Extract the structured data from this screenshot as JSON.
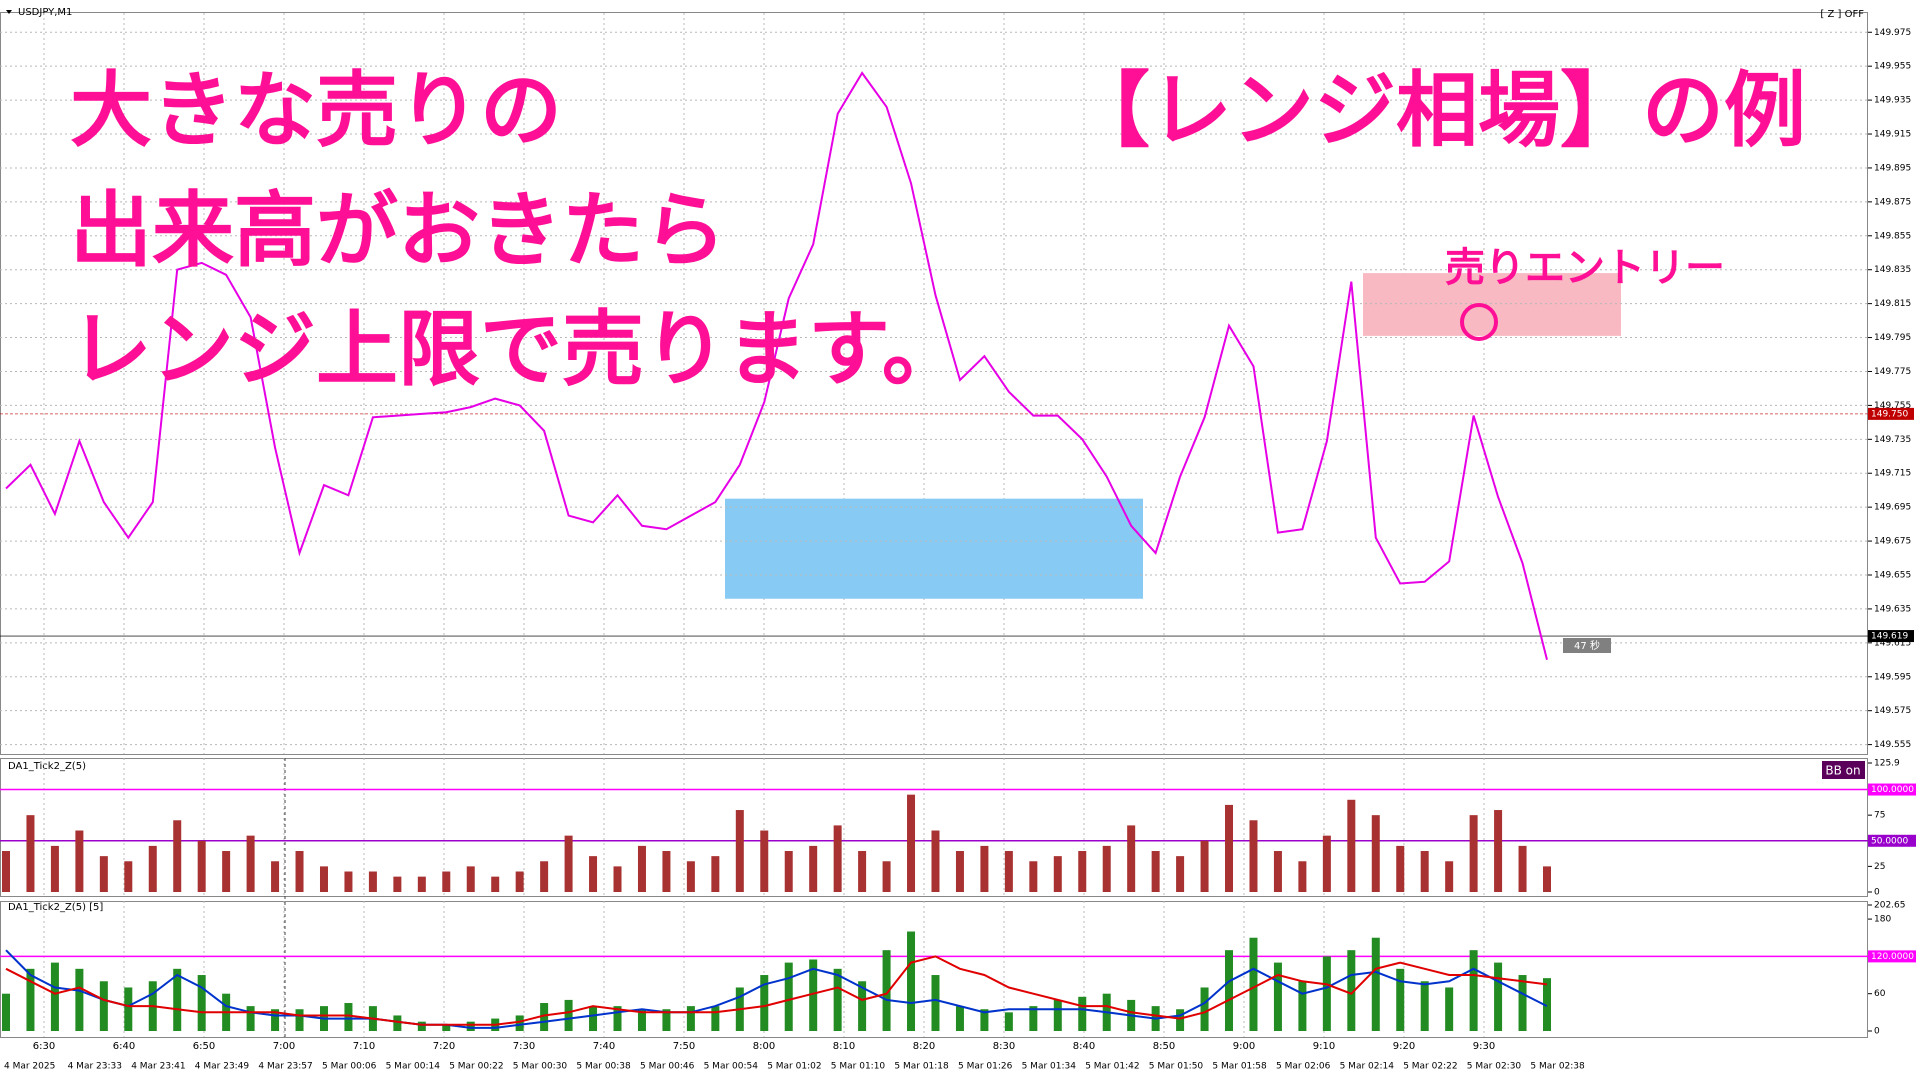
{
  "chart_data": [
    {
      "type": "line",
      "title": "USDJPY,M1",
      "status": "[ Z ] OFF",
      "ylim": [
        149.553,
        149.984
      ],
      "yticks": [
        149.555,
        149.575,
        149.595,
        149.615,
        149.635,
        149.655,
        149.675,
        149.695,
        149.715,
        149.735,
        149.755,
        149.775,
        149.795,
        149.815,
        149.835,
        149.855,
        149.875,
        149.895,
        149.915,
        149.935,
        149.955,
        149.975
      ],
      "grid": true,
      "series": [
        {
          "color": "#e600e6",
          "values": [
            149.706,
            149.72,
            149.691,
            149.734,
            149.698,
            149.677,
            149.698,
            149.835,
            149.839,
            149.832,
            149.807,
            149.73,
            149.668,
            149.708,
            149.702,
            149.748,
            149.749,
            149.75,
            149.751,
            149.754,
            149.759,
            149.755,
            149.74,
            149.69,
            149.686,
            149.702,
            149.684,
            149.682,
            149.69,
            149.698,
            149.72,
            149.757,
            149.818,
            149.85,
            149.927,
            149.951,
            149.931,
            149.886,
            149.82,
            149.77,
            149.784,
            149.763,
            149.749,
            149.749,
            149.735,
            149.713,
            149.684,
            149.668,
            149.713,
            149.748,
            149.802,
            149.778,
            149.68,
            149.682,
            149.734,
            149.828,
            149.677,
            149.65,
            149.651,
            149.663,
            149.749,
            149.701,
            149.662,
            149.605
          ]
        }
      ],
      "hlines": [
        {
          "value": 149.75,
          "label": "149.750",
          "color": "#c00000"
        },
        {
          "value": 149.619,
          "label": "149.619",
          "color": "#000000"
        }
      ],
      "zones": [
        {
          "ymin": 149.641,
          "ymax": 149.7,
          "color": "#87cbf5"
        },
        {
          "ymin": 149.796,
          "ymax": 149.833,
          "color": "#f8b9c2"
        }
      ],
      "countdown": "47 秒",
      "annotations": [
        "大きな売りの",
        "出来高がおきたら",
        "レンジ上限で売ります。",
        "【レンジ相場】の例",
        "売りエントリー"
      ]
    },
    {
      "type": "bar",
      "title": "DA1_Tick2_Z(5)",
      "badge": "BB on",
      "color": "#a83232",
      "ylim": [
        0,
        125.9
      ],
      "yticks": [
        125.9,
        75,
        25,
        0
      ],
      "levels": [
        {
          "value": 100,
          "label": "100.0000",
          "color": "#ff00ff"
        },
        {
          "value": 50,
          "label": "50.0000",
          "color": "#9900cc"
        }
      ],
      "values": [
        40,
        75,
        45,
        60,
        35,
        30,
        45,
        70,
        50,
        40,
        55,
        30,
        40,
        25,
        20,
        20,
        15,
        15,
        20,
        25,
        15,
        20,
        30,
        55,
        35,
        25,
        45,
        40,
        30,
        35,
        80,
        60,
        40,
        45,
        65,
        40,
        30,
        95,
        60,
        40,
        45,
        40,
        30,
        35,
        40,
        45,
        65,
        40,
        35,
        50,
        85,
        70,
        40,
        30,
        55,
        90,
        75,
        45,
        40,
        30,
        75,
        80,
        45,
        25
      ]
    },
    {
      "type": "combo",
      "title": "DA1_Tick2_Z(5) [5]",
      "color": "#228b22",
      "ylim": [
        0,
        202.65
      ],
      "yticks": [
        202.65,
        180,
        60,
        0
      ],
      "levels": [
        {
          "value": 120,
          "label": "120.0000",
          "color": "#ff00ff"
        }
      ],
      "values": [
        60,
        100,
        110,
        100,
        80,
        70,
        80,
        100,
        90,
        60,
        40,
        35,
        35,
        40,
        45,
        40,
        25,
        15,
        10,
        15,
        20,
        25,
        45,
        50,
        40,
        40,
        35,
        35,
        40,
        40,
        70,
        90,
        110,
        115,
        100,
        80,
        130,
        160,
        90,
        40,
        35,
        30,
        40,
        50,
        55,
        60,
        50,
        40,
        35,
        70,
        130,
        150,
        110,
        80,
        120,
        130,
        150,
        100,
        80,
        70,
        130,
        110,
        90,
        85
      ],
      "lines": [
        {
          "color": "#0033cc",
          "values": [
            130,
            90,
            70,
            65,
            50,
            40,
            60,
            90,
            70,
            40,
            30,
            25,
            25,
            20,
            20,
            20,
            15,
            10,
            10,
            5,
            5,
            10,
            15,
            20,
            25,
            30,
            35,
            30,
            30,
            40,
            55,
            75,
            85,
            100,
            90,
            70,
            50,
            45,
            50,
            40,
            30,
            35,
            35,
            35,
            35,
            30,
            25,
            20,
            25,
            45,
            80,
            100,
            80,
            60,
            70,
            90,
            95,
            80,
            75,
            80,
            100,
            80,
            60,
            40
          ]
        },
        {
          "color": "#e00000",
          "values": [
            100,
            80,
            60,
            70,
            50,
            40,
            40,
            35,
            30,
            30,
            30,
            30,
            25,
            25,
            25,
            20,
            15,
            10,
            10,
            10,
            10,
            15,
            25,
            30,
            40,
            35,
            30,
            30,
            30,
            30,
            35,
            40,
            50,
            60,
            70,
            50,
            60,
            110,
            120,
            100,
            90,
            70,
            60,
            50,
            40,
            40,
            30,
            25,
            20,
            30,
            50,
            70,
            90,
            80,
            75,
            60,
            100,
            110,
            100,
            90,
            90,
            85,
            80,
            75
          ]
        }
      ]
    }
  ],
  "time_axis": {
    "times": [
      "6:30",
      "6:40",
      "6:50",
      "7:00",
      "7:10",
      "7:20",
      "7:30",
      "7:40",
      "7:50",
      "8:00",
      "8:10",
      "8:20",
      "8:30",
      "8:40",
      "8:50",
      "9:00",
      "9:10",
      "9:20",
      "9:30"
    ],
    "dates": [
      "4 Mar 2025",
      "4 Mar 23:33",
      "4 Mar 23:41",
      "4 Mar 23:49",
      "4 Mar 23:57",
      "5 Mar 00:06",
      "5 Mar 00:14",
      "5 Mar 00:22",
      "5 Mar 00:30",
      "5 Mar 00:38",
      "5 Mar 00:46",
      "5 Mar 00:54",
      "5 Mar 01:02",
      "5 Mar 01:10",
      "5 Mar 01:18",
      "5 Mar 01:26",
      "5 Mar 01:34",
      "5 Mar 01:42",
      "5 Mar 01:50",
      "5 Mar 01:58",
      "5 Mar 02:06",
      "5 Mar 02:14",
      "5 Mar 02:22",
      "5 Mar 02:30",
      "5 Mar 02:38"
    ]
  }
}
